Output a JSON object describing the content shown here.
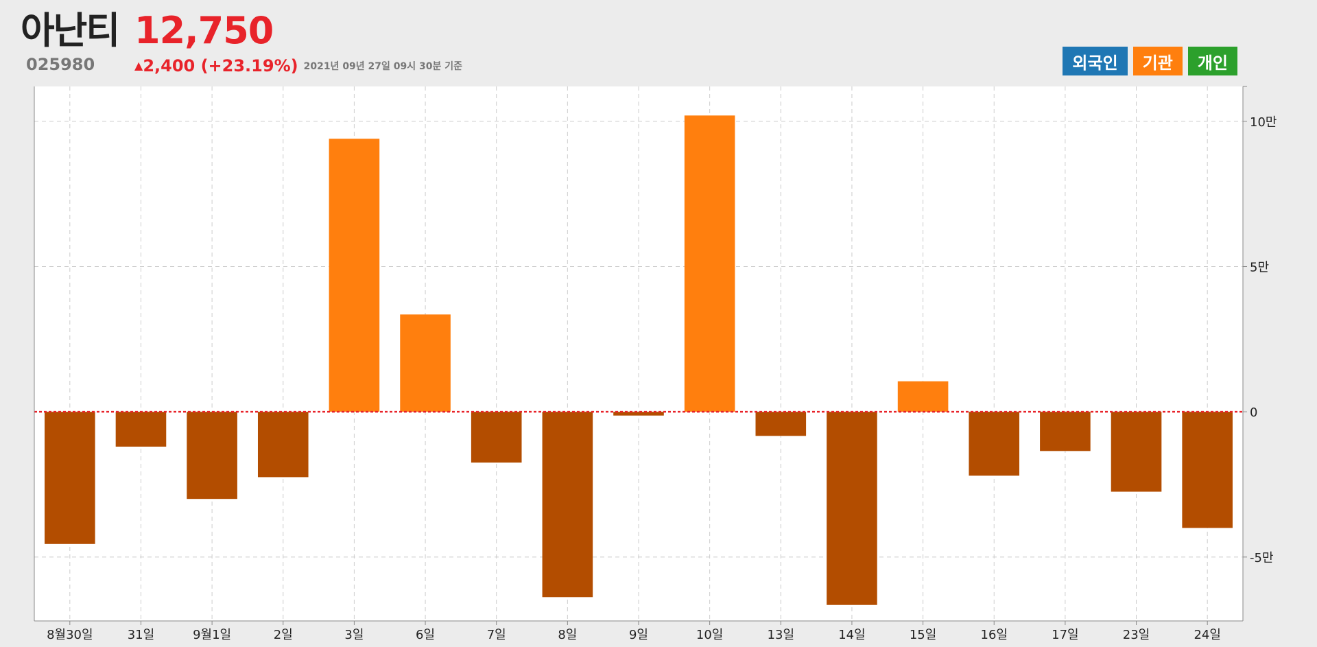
{
  "header": {
    "stock_name": "아난티",
    "price": "12,750",
    "code": "025980",
    "change_arrow": "▲",
    "change": "2,400 (+23.19%)",
    "timestamp": "2021년 09년 27일 09시 30분 기준"
  },
  "legend": [
    {
      "label": "외국인",
      "color": "#1f77b4"
    },
    {
      "label": "기관",
      "color": "#ff7f0e"
    },
    {
      "label": "개인",
      "color": "#2ca02c"
    }
  ],
  "colors": {
    "positive": "#ff7f0e",
    "negative": "#b34d00",
    "zero_line": "#e8232a",
    "grid": "#cccccc",
    "axis": "#888888"
  },
  "chart_data": {
    "type": "bar",
    "categories": [
      "8월30일",
      "31일",
      "9월1일",
      "2일",
      "3일",
      "6일",
      "7일",
      "8일",
      "9일",
      "10일",
      "13일",
      "14일",
      "15일",
      "16일",
      "17일",
      "23일",
      "24일"
    ],
    "series": [
      {
        "values": [
          -45500,
          -12000,
          -30000,
          -22500,
          94000,
          33500,
          -17500,
          -63800,
          -1300,
          102000,
          -8300,
          -66500,
          10500,
          -22000,
          -13500,
          -27500,
          -40000
        ]
      }
    ],
    "y_ticks": [
      {
        "value": 100000,
        "label": "10만"
      },
      {
        "value": 50000,
        "label": "5만"
      },
      {
        "value": 0,
        "label": "0"
      },
      {
        "value": -50000,
        "label": "-5만"
      }
    ],
    "ylim": [
      -72000,
      112000
    ],
    "y_axis_position": "right",
    "grid": true,
    "legend_position": "top-right"
  }
}
